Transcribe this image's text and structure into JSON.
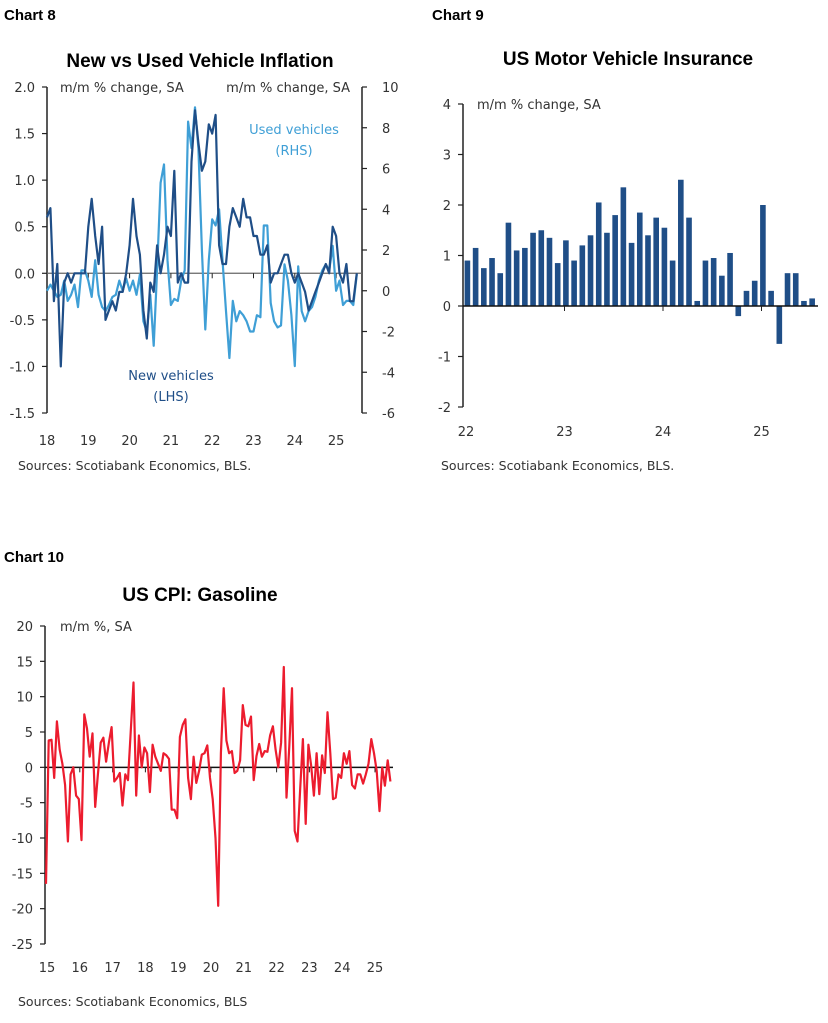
{
  "colors": {
    "new_vehicles": "#1f4e87",
    "used_vehicles": "#3f9fd6",
    "insurance": "#1f4e87",
    "gasoline": "#ec1c2e"
  },
  "chart_data": [
    {
      "label": "Chart 8",
      "type": "line",
      "title": "New vs Used Vehicle Inflation",
      "ylabel_left": "m/m % change, SA",
      "ylabel_right": "m/m % change, SA",
      "ylim_left": [
        -1.5,
        2.0
      ],
      "ylim_right": [
        -6,
        10
      ],
      "yticks_left": [
        "2.0",
        "1.5",
        "1.0",
        "0.5",
        "0.0",
        "-0.5",
        "-1.0",
        "-1.5"
      ],
      "yticks_right": [
        "10",
        "8",
        "6",
        "4",
        "2",
        "0",
        "-2",
        "-4",
        "-6"
      ],
      "xticks": [
        "18",
        "19",
        "20",
        "21",
        "22",
        "23",
        "24",
        "25"
      ],
      "frequency": "monthly from Jan 2018",
      "series": [
        {
          "name": "New vehicles",
          "name2": "(LHS)",
          "axis": "left",
          "values": [
            0.6,
            0.7,
            -0.3,
            0.1,
            -1.0,
            -0.1,
            0,
            -0.1,
            0,
            0,
            0,
            0,
            0.5,
            0.8,
            0.4,
            0.1,
            0.5,
            -0.5,
            -0.4,
            -0.3,
            -0.4,
            -0.2,
            -0.2,
            0,
            0.3,
            0.8,
            0.4,
            0.2,
            -0.4,
            -0.7,
            -0.1,
            -0.2,
            0.3,
            0,
            0.2,
            0.5,
            0.4,
            1.1,
            -0.1,
            0,
            -0.1,
            -0.1,
            1.2,
            1.75,
            1.4,
            1.1,
            1.2,
            1.6,
            1.5,
            1.7,
            0.3,
            0.1,
            0.1,
            0.5,
            0.7,
            0.6,
            0.5,
            0.8,
            0.6,
            0.6,
            0.4,
            0.4,
            0.2,
            0.2,
            0.3,
            -0.1,
            0,
            0,
            0.1,
            0.2,
            0.2,
            0,
            -0.1,
            0,
            -0.1,
            -0.2,
            -0.4,
            -0.3,
            -0.2,
            -0.1,
            0,
            0.1,
            0,
            0.5,
            0.4,
            0,
            -0.1,
            0.1,
            -0.3,
            -0.3,
            0
          ]
        },
        {
          "name": "Used vehicles",
          "name2": "(RHS)",
          "axis": "right",
          "values": [
            0,
            0.3,
            0,
            -0.3,
            -0.2,
            0.5,
            -0.5,
            -0.2,
            0.3,
            -0.8,
            1,
            1,
            0.5,
            -0.3,
            1.5,
            -0.2,
            -0.8,
            -1,
            -0.7,
            -0.3,
            -0.2,
            0.5,
            0,
            0.6,
            0,
            0.5,
            -0.2,
            0.8,
            -1.5,
            -2,
            -0.2,
            -2.7,
            1,
            5.3,
            6.2,
            1.5,
            -0.7,
            -0.4,
            -0.5,
            0.5,
            1,
            8.3,
            7,
            9,
            7,
            2,
            -1.9,
            1.5,
            3.5,
            3.2,
            4,
            1.5,
            -1,
            -3.3,
            -0.5,
            -1.5,
            -1,
            -1.2,
            -1.5,
            -2,
            -2,
            -1.2,
            -1.3,
            3.2,
            3.2,
            -0.6,
            -1.5,
            -1.8,
            -1.7,
            1.3,
            0.5,
            -1.2,
            -3.7,
            1.2,
            -1,
            -1.5,
            -1,
            -0.8,
            -0.3,
            0.5,
            1,
            1.3,
            1,
            2.2,
            0,
            0.5,
            -0.7,
            -0.5,
            -0.5,
            -0.7,
            0.8
          ]
        }
      ],
      "source": "Sources: Scotiabank Economics, BLS."
    },
    {
      "label": "Chart 9",
      "type": "bar",
      "title": "US Motor Vehicle Insurance",
      "ylabel": "m/m % change, SA",
      "ylim": [
        -2,
        4
      ],
      "yticks": [
        "4",
        "3",
        "2",
        "1",
        "0",
        "-1",
        "-2"
      ],
      "xticks": [
        "22",
        "23",
        "24",
        "25"
      ],
      "frequency": "monthly from Jan 2022",
      "values": [
        0.9,
        1.15,
        0.75,
        0.95,
        0.65,
        1.65,
        1.1,
        1.15,
        1.45,
        1.5,
        1.35,
        0.85,
        1.3,
        0.9,
        1.2,
        1.4,
        2.05,
        1.45,
        1.8,
        2.35,
        1.25,
        1.85,
        1.4,
        1.75,
        1.55,
        0.9,
        2.5,
        1.75,
        0.1,
        0.9,
        0.95,
        0.6,
        1.05,
        -0.2,
        0.3,
        0.5,
        2.0,
        0.3,
        -0.75,
        0.65,
        0.65,
        0.1,
        0.15
      ],
      "source": "Sources: Scotiabank Economics, BLS."
    },
    {
      "label": "Chart 10",
      "type": "line",
      "title": "US CPI: Gasoline",
      "ylabel": "m/m %, SA",
      "ylim": [
        -25,
        20
      ],
      "yticks": [
        "20",
        "15",
        "10",
        "5",
        "0",
        "-5",
        "-10",
        "-15",
        "-20",
        "-25"
      ],
      "xticks": [
        "15",
        "16",
        "17",
        "18",
        "19",
        "20",
        "21",
        "22",
        "23",
        "24",
        "25"
      ],
      "frequency": "monthly from Jan 2015",
      "values": [
        -16.5,
        3.8,
        3.9,
        -1.5,
        6.5,
        2.5,
        0.5,
        -2.5,
        -10.5,
        -1,
        0,
        -4,
        -4.5,
        -10.3,
        7.5,
        5.5,
        1.5,
        4.8,
        -5.6,
        -1,
        3.5,
        4.2,
        0.8,
        3.5,
        5.7,
        -2,
        -1.5,
        -0.8,
        -5.4,
        -1,
        -1.8,
        5,
        12,
        -4,
        4.5,
        0,
        2.8,
        2,
        -3.5,
        3.2,
        1.5,
        0.5,
        -0.5,
        2,
        1.7,
        1.2,
        -6,
        -6,
        -7.2,
        4.3,
        6,
        6.8,
        -1.5,
        -4.5,
        1.5,
        -2.2,
        -0.5,
        1.8,
        2,
        3.1,
        -1.5,
        -4.5,
        -10,
        -19.6,
        2,
        11.2,
        3.8,
        2,
        2.3,
        -0.8,
        -0.5,
        1,
        8.8,
        6,
        5.8,
        7.2,
        -1.8,
        1.6,
        3.3,
        1.5,
        2.3,
        2.2,
        4.5,
        5.8,
        2.5,
        0,
        3.5,
        14.2,
        -4.3,
        3,
        11.2,
        -9,
        -10.5,
        -3,
        4,
        -8,
        3.2,
        0.3,
        -4,
        2,
        -3.8,
        1.7,
        -0.8,
        7.8,
        2,
        -4.5,
        -4.3,
        -1,
        -1.5,
        2,
        0.5,
        2.3,
        -2.5,
        -3,
        -1,
        -1,
        -2.3,
        -1,
        0.5,
        4,
        2,
        -0.5,
        -6.2,
        0,
        -2.6,
        1,
        -2
      ],
      "source": "Sources: Scotiabank Economics, BLS"
    }
  ]
}
